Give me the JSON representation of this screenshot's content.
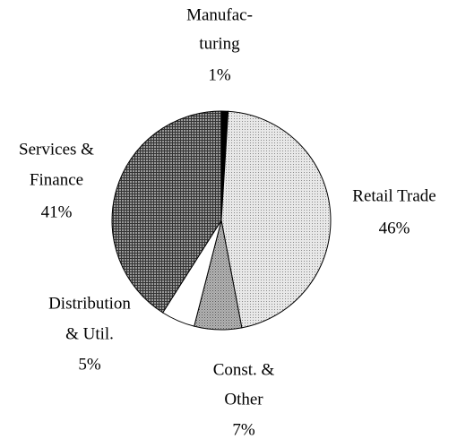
{
  "chart_data": {
    "type": "pie",
    "categories": [
      [
        "Manufac-",
        "turing"
      ],
      [
        "Retail Trade"
      ],
      [
        "Const. &",
        "Other"
      ],
      [
        "Distribution",
        "& Util."
      ],
      [
        "Services &",
        "Finance"
      ]
    ],
    "values": [
      1,
      46,
      7,
      5,
      41
    ],
    "value_labels": [
      "1%",
      "46%",
      "7%",
      "5%",
      "41%"
    ],
    "colors": [
      "#000000",
      "#e8e8e8",
      "#b4b4b4",
      "#ffffff",
      "#9a9a9a"
    ]
  }
}
